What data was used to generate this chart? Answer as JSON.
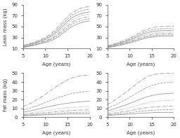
{
  "age": [
    5,
    6,
    7,
    8,
    9,
    10,
    11,
    12,
    13,
    14,
    15,
    16,
    17,
    18,
    19,
    20
  ],
  "lean_boys_percentiles": [
    [
      12.0,
      13.5,
      15.0,
      16.8,
      18.8,
      21.0,
      23.5,
      27.0,
      32.0,
      38.0,
      44.5,
      50.0,
      54.0,
      57.0,
      59.0,
      60.5
    ],
    [
      12.5,
      14.2,
      15.8,
      17.8,
      20.0,
      22.5,
      25.5,
      29.5,
      35.0,
      41.5,
      48.0,
      54.0,
      58.0,
      61.0,
      63.0,
      64.5
    ],
    [
      13.0,
      14.8,
      16.5,
      18.7,
      21.0,
      23.8,
      27.2,
      31.5,
      37.5,
      44.5,
      51.5,
      57.5,
      62.0,
      65.0,
      67.0,
      68.5
    ],
    [
      13.5,
      15.5,
      17.3,
      19.6,
      22.2,
      25.2,
      29.0,
      33.8,
      40.5,
      48.0,
      55.5,
      62.0,
      66.5,
      69.5,
      71.5,
      73.0
    ],
    [
      14.2,
      16.2,
      18.2,
      20.7,
      23.5,
      26.8,
      31.0,
      36.3,
      43.5,
      51.5,
      59.5,
      66.0,
      70.5,
      73.5,
      75.5,
      77.0
    ],
    [
      15.0,
      17.2,
      19.3,
      21.9,
      25.0,
      28.5,
      33.2,
      39.0,
      47.0,
      55.5,
      63.5,
      70.5,
      75.5,
      78.5,
      80.5,
      82.0
    ],
    [
      15.8,
      18.1,
      20.5,
      23.2,
      26.5,
      30.5,
      35.5,
      42.0,
      50.5,
      59.5,
      68.0,
      75.0,
      80.0,
      83.5,
      85.5,
      87.0
    ]
  ],
  "lean_girls_percentiles": [
    [
      11.5,
      13.0,
      14.5,
      16.2,
      18.2,
      20.2,
      22.5,
      25.0,
      27.5,
      29.5,
      31.0,
      32.0,
      32.5,
      32.8,
      33.0,
      33.0
    ],
    [
      12.0,
      13.7,
      15.3,
      17.2,
      19.3,
      21.5,
      24.0,
      26.8,
      29.5,
      31.5,
      33.0,
      34.0,
      34.5,
      35.0,
      35.0,
      35.0
    ],
    [
      12.5,
      14.3,
      16.0,
      18.0,
      20.3,
      22.7,
      25.5,
      28.5,
      31.5,
      33.5,
      35.5,
      36.5,
      37.0,
      37.5,
      37.5,
      37.5
    ],
    [
      13.0,
      14.9,
      16.8,
      18.9,
      21.4,
      24.0,
      27.0,
      30.5,
      33.8,
      36.0,
      38.0,
      39.0,
      39.5,
      40.0,
      40.0,
      40.0
    ],
    [
      13.5,
      15.7,
      17.7,
      20.0,
      22.7,
      25.5,
      29.0,
      32.5,
      36.5,
      38.8,
      41.0,
      42.0,
      42.5,
      43.0,
      43.0,
      43.0
    ],
    [
      14.2,
      16.5,
      18.8,
      21.2,
      24.0,
      27.2,
      31.0,
      35.0,
      39.0,
      42.0,
      44.0,
      45.5,
      46.0,
      46.5,
      46.5,
      46.5
    ],
    [
      15.0,
      17.5,
      19.9,
      22.5,
      25.5,
      29.0,
      33.2,
      37.8,
      42.0,
      45.5,
      48.0,
      49.5,
      50.0,
      50.5,
      50.5,
      51.0
    ]
  ],
  "fat_boys_percentiles": [
    [
      1.5,
      1.8,
      2.0,
      2.2,
      2.4,
      2.6,
      2.8,
      3.0,
      3.2,
      3.4,
      3.5,
      3.6,
      3.7,
      3.8,
      3.8,
      3.9
    ],
    [
      2.0,
      2.4,
      2.7,
      3.0,
      3.3,
      3.6,
      3.9,
      4.2,
      4.5,
      4.7,
      5.0,
      5.2,
      5.4,
      5.5,
      5.6,
      5.7
    ],
    [
      2.8,
      3.2,
      3.7,
      4.2,
      4.6,
      5.1,
      5.5,
      6.0,
      6.4,
      6.8,
      7.2,
      7.5,
      7.8,
      8.0,
      8.2,
      8.3
    ],
    [
      3.8,
      4.5,
      5.2,
      5.9,
      6.6,
      7.4,
      8.0,
      8.8,
      9.5,
      10.0,
      10.6,
      11.0,
      11.4,
      11.7,
      11.9,
      12.0
    ],
    [
      5.5,
      6.5,
      7.5,
      8.6,
      9.8,
      11.0,
      12.0,
      13.2,
      14.2,
      15.0,
      15.8,
      16.5,
      17.0,
      17.5,
      17.8,
      18.0
    ],
    [
      8.0,
      9.5,
      11.0,
      12.7,
      14.5,
      16.5,
      18.5,
      20.5,
      22.5,
      24.0,
      25.5,
      26.8,
      27.8,
      28.5,
      29.0,
      29.5
    ],
    [
      12.0,
      14.0,
      16.5,
      19.5,
      22.5,
      26.0,
      29.5,
      33.0,
      36.5,
      39.5,
      42.5,
      44.5,
      46.0,
      47.0,
      47.5,
      48.0
    ]
  ],
  "fat_girls_percentiles": [
    [
      1.8,
      2.2,
      2.5,
      2.8,
      3.1,
      3.5,
      3.8,
      4.2,
      4.5,
      4.8,
      5.0,
      5.2,
      5.3,
      5.4,
      5.4,
      5.5
    ],
    [
      2.5,
      3.0,
      3.5,
      4.0,
      4.5,
      5.1,
      5.7,
      6.3,
      6.9,
      7.4,
      7.8,
      8.1,
      8.3,
      8.5,
      8.6,
      8.7
    ],
    [
      3.5,
      4.2,
      5.0,
      5.7,
      6.5,
      7.4,
      8.3,
      9.2,
      10.0,
      10.8,
      11.4,
      11.8,
      12.0,
      12.2,
      12.3,
      12.5
    ],
    [
      5.0,
      6.0,
      7.2,
      8.3,
      9.5,
      10.8,
      12.2,
      13.6,
      15.0,
      16.2,
      17.2,
      18.0,
      18.5,
      18.8,
      19.0,
      19.2
    ],
    [
      7.0,
      8.5,
      10.2,
      11.8,
      13.5,
      15.5,
      17.5,
      19.5,
      21.5,
      23.2,
      24.5,
      25.5,
      26.2,
      26.7,
      27.0,
      27.2
    ],
    [
      10.0,
      12.2,
      14.5,
      17.0,
      19.5,
      22.5,
      25.5,
      28.5,
      31.5,
      34.0,
      36.0,
      37.5,
      38.5,
      39.2,
      39.5,
      40.0
    ],
    [
      14.0,
      17.0,
      20.5,
      24.0,
      27.5,
      31.5,
      35.5,
      39.5,
      43.0,
      46.0,
      48.0,
      49.0,
      49.5,
      49.8,
      50.0,
      50.0
    ]
  ],
  "line_styles": [
    "solid",
    "dashed",
    "dashdot",
    "dotted",
    "solid",
    "dashed",
    "dashdot"
  ],
  "line_color": "#999999",
  "bg_color": "#ffffff",
  "tick_color": "#333333",
  "font_size": 5,
  "label_size": 5
}
